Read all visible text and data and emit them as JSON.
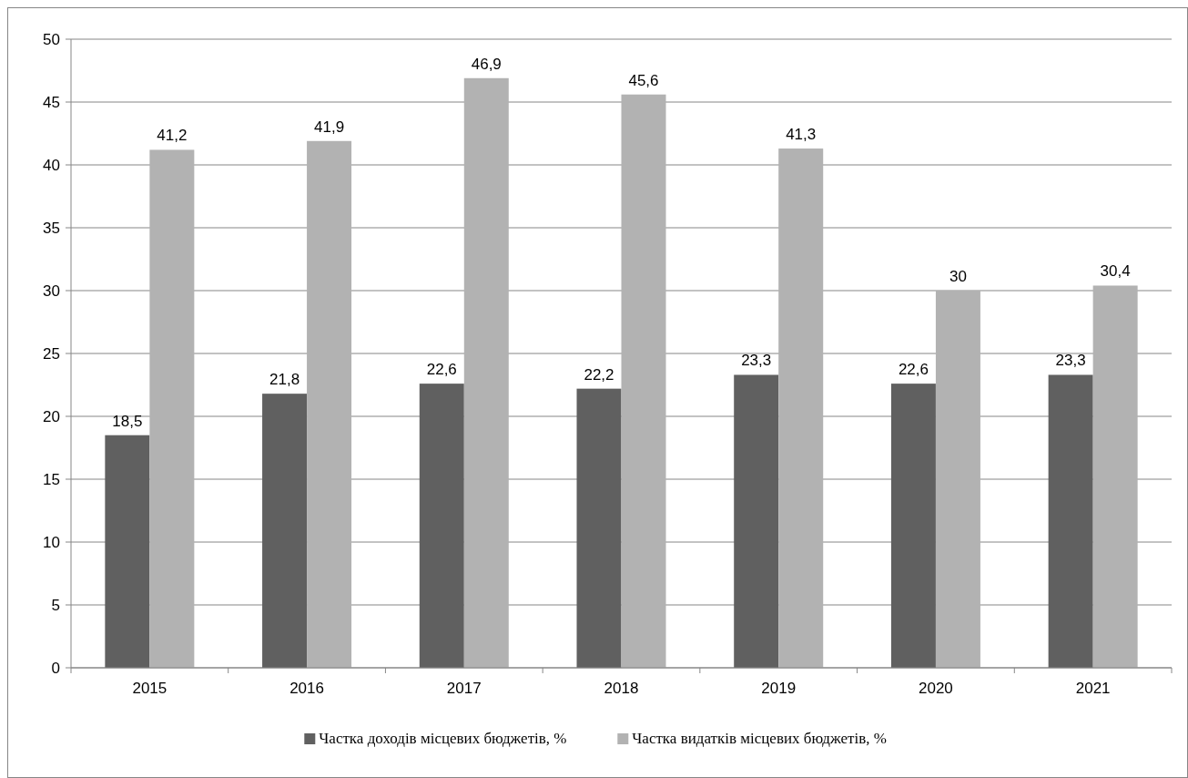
{
  "chart_data": {
    "type": "bar",
    "categories": [
      "2015",
      "2016",
      "2017",
      "2018",
      "2019",
      "2020",
      "2021"
    ],
    "series": [
      {
        "name": "Частка доходів місцевих бюджетів, %",
        "color": "#606060",
        "values": [
          18.5,
          21.8,
          22.6,
          22.2,
          23.3,
          22.6,
          23.3
        ],
        "value_labels": [
          "18,5",
          "21,8",
          "22,6",
          "22,2",
          "23,3",
          "22,6",
          "23,3"
        ]
      },
      {
        "name": "Частка видатків місцевих бюджетів, %",
        "color": "#b2b2b2",
        "values": [
          41.2,
          41.9,
          46.9,
          45.6,
          41.3,
          30,
          30.4
        ],
        "value_labels": [
          "41,2",
          "41,9",
          "46,9",
          "45,6",
          "41,3",
          "30",
          "30,4"
        ]
      }
    ],
    "ylim": [
      0,
      50
    ],
    "yticks": [
      0,
      5,
      10,
      15,
      20,
      25,
      30,
      35,
      40,
      45,
      50
    ],
    "grid": "y",
    "legend": "bottom"
  }
}
